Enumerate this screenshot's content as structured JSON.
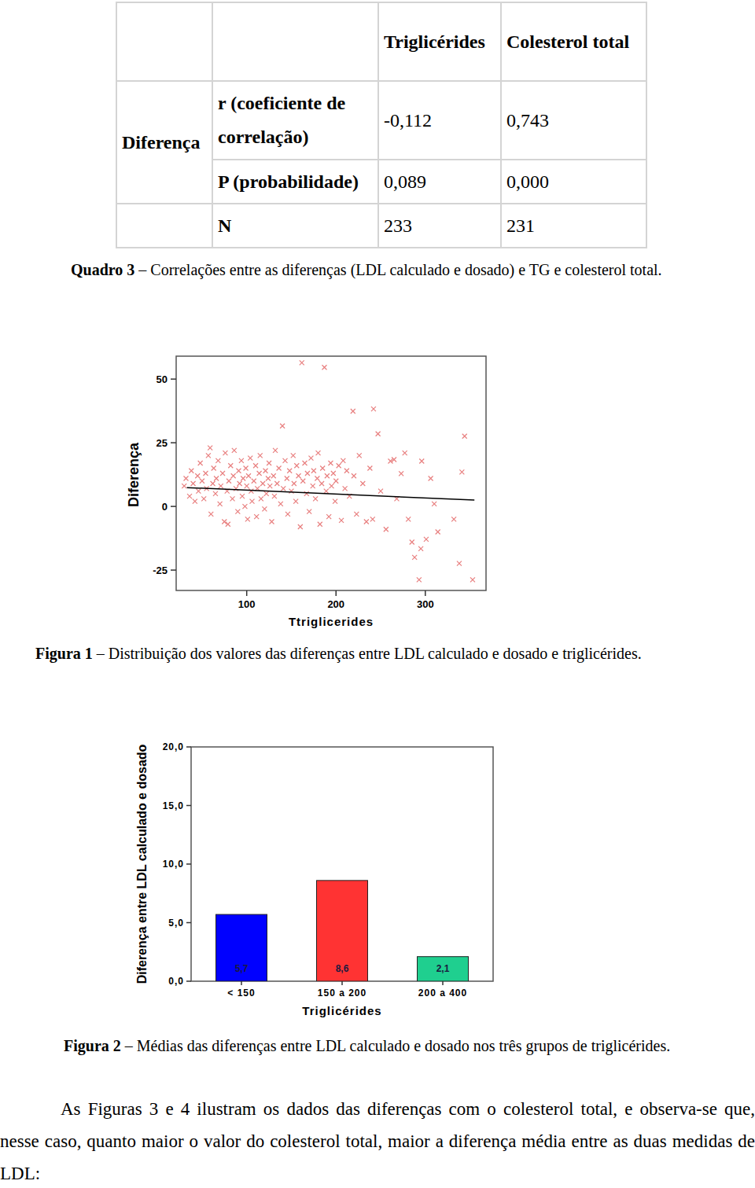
{
  "table": {
    "header": [
      "Triglicérides",
      "Colesterol total"
    ],
    "row_group": "Diferença",
    "rows": [
      [
        "r (coeficiente de correlação)",
        "-0,112",
        "0,743"
      ],
      [
        "P (probabilidade)",
        "0,089",
        "0,000"
      ],
      [
        "N",
        "233",
        "231"
      ]
    ]
  },
  "captions": [
    {
      "label": "Quadro 3",
      "text": "– Correlações entre as diferenças (LDL calculado e dosado) e TG e colesterol total."
    },
    {
      "label": "Figura 1",
      "text": "– Distribuição dos valores das diferenças entre LDL calculado e dosado e triglicérides."
    },
    {
      "label": "Figura 2",
      "text": "– Médias das diferenças entre LDL calculado e dosado nos três grupos de triglicérides."
    }
  ],
  "paragraph": "As Figuras 3 e 4 ilustram os dados das diferenças com o colesterol total, e observa-se que, nesse caso, quanto maior o valor do colesterol total, maior a diferença média entre as duas medidas de LDL:",
  "chart_data": [
    {
      "type": "scatter",
      "x_label": "Ttriglicerides",
      "y_label": "Diferença",
      "xlim": [
        21,
        368
      ],
      "ylim": [
        -33,
        59
      ],
      "xticks": [
        100,
        200,
        300
      ],
      "yticks": [
        -25,
        0,
        25,
        50
      ],
      "grid": false,
      "series": [
        {
          "type": "scatter",
          "color": "#e87f7f",
          "marker": "x",
          "x": [
            30,
            32,
            36,
            38,
            40,
            42,
            45,
            46,
            48,
            50,
            52,
            54,
            55,
            57,
            59,
            60,
            62,
            63,
            65,
            66,
            68,
            70,
            71,
            73,
            75,
            76,
            78,
            79,
            80,
            82,
            84,
            85,
            86,
            88,
            90,
            91,
            92,
            94,
            95,
            96,
            98,
            99,
            100,
            101,
            102,
            104,
            105,
            106,
            108,
            110,
            111,
            112,
            114,
            115,
            116,
            118,
            120,
            121,
            122,
            124,
            125,
            126,
            128,
            130,
            131,
            132,
            134,
            136,
            138,
            140,
            141,
            143,
            145,
            146,
            148,
            150,
            152,
            153,
            155,
            156,
            158,
            160,
            161.7,
            163,
            165,
            167,
            168,
            170,
            172,
            174,
            175,
            177,
            179,
            180,
            182,
            184,
            185,
            187,
            189,
            190,
            192,
            194,
            195,
            197,
            199,
            200,
            203,
            206,
            208,
            210,
            212,
            215,
            219,
            220,
            223,
            226,
            230,
            234,
            238,
            241,
            242,
            247,
            250,
            256,
            261,
            265,
            268,
            273,
            277,
            281,
            285,
            288,
            293,
            295,
            296,
            301,
            306,
            310,
            314,
            332,
            338,
            341,
            344,
            353
          ],
          "values": [
            8,
            11,
            4,
            14,
            9,
            2,
            12,
            6,
            17,
            10,
            3,
            13,
            7,
            20,
            23,
            -3,
            9,
            15,
            5,
            11,
            18,
            1,
            8,
            13,
            -6,
            21,
            6,
            -7,
            10,
            16,
            3,
            12,
            22,
            7,
            -2,
            14,
            9,
            18,
            4,
            11,
            0,
            15,
            8,
            -5,
            12,
            19,
            6,
            2,
            10,
            16,
            -4,
            7,
            13,
            20,
            3,
            9,
            -1,
            14,
            5,
            11,
            17,
            8,
            -6,
            12,
            4,
            22,
            9,
            15,
            1,
            31.6,
            7,
            18,
            11,
            -3,
            14,
            6,
            20,
            9,
            2,
            16,
            12,
            -8,
            56.4,
            10,
            17,
            5,
            13,
            -2,
            19,
            8,
            14,
            3,
            11,
            21,
            -7,
            9,
            15,
            54.6,
            6,
            12,
            -4,
            17,
            8,
            13,
            2,
            10,
            16,
            -5.5,
            18,
            7,
            14,
            4,
            37.4,
            12,
            -3,
            20,
            9,
            -6,
            15,
            -5,
            38.3,
            28.5,
            6,
            -9,
            17.8,
            18.4,
            3,
            12.9,
            21,
            -5,
            -14,
            -20,
            -28.8,
            -16.6,
            17.8,
            -12.9,
            11,
            1,
            -10,
            -5,
            -22.4,
            13.5,
            27.6,
            -28.8
          ]
        },
        {
          "type": "line",
          "color": "#000000",
          "x": [
            33,
            355
          ],
          "values": [
            7.4,
            2.5
          ]
        }
      ]
    },
    {
      "type": "bar",
      "x_label": "Triglicérides",
      "y_label": "Diferença entre LDL calculado e dosado",
      "categories": [
        "< 150",
        "150 a 200",
        "200 a 400"
      ],
      "values": [
        5.7,
        8.6,
        2.1
      ],
      "value_labels": [
        "5,7",
        "8,6",
        "2,1"
      ],
      "colors": [
        "#0000ff",
        "#ff3333",
        "#1fcf8f"
      ],
      "data_labels": true,
      "grid": false,
      "ylim": [
        0,
        20
      ],
      "yticks": [
        {
          "value": 0,
          "label": "0,0"
        },
        {
          "value": 5,
          "label": "5,0"
        },
        {
          "value": 10,
          "label": "10,0"
        },
        {
          "value": 15,
          "label": "15,0"
        },
        {
          "value": 20,
          "label": "20,0"
        }
      ]
    }
  ]
}
